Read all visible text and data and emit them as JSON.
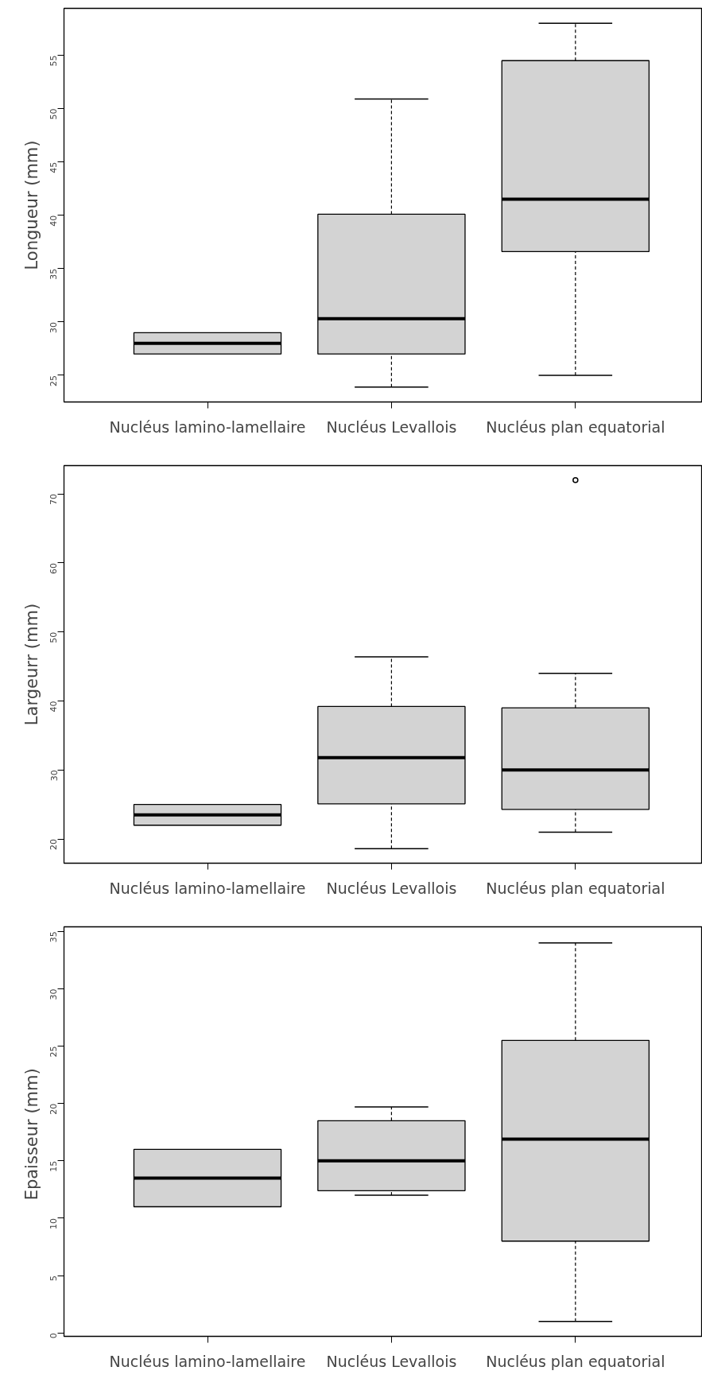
{
  "chart_data": [
    {
      "type": "box",
      "ylabel": "Longueur (mm)",
      "categories": [
        "Nucléus lamino-lamellaire",
        "Nucléus Levallois",
        "Nucléus plan equatorial"
      ],
      "ylim": [
        22.5,
        59.4
      ],
      "yticks": [
        25,
        30,
        35,
        40,
        45,
        50,
        55
      ],
      "series": [
        {
          "color": "#d3d3d3",
          "boxes": [
            {
              "low": 27,
              "q1": 27,
              "median": 28,
              "q3": 29,
              "high": 29
            },
            {
              "low": 23.9,
              "q1": 27,
              "median": 30.3,
              "q3": 40.1,
              "high": 50.9
            },
            {
              "low": 25,
              "q1": 36.6,
              "median": 41.5,
              "q3": 54.5,
              "high": 58
            }
          ]
        }
      ]
    },
    {
      "type": "box",
      "ylabel": "Largeurr (mm)",
      "categories": [
        "Nucléus lamino-lamellaire",
        "Nucléus Levallois",
        "Nucléus plan equatorial"
      ],
      "ylim": [
        16.5,
        74.1
      ],
      "yticks": [
        20,
        30,
        40,
        50,
        60,
        70
      ],
      "series": [
        {
          "color": "#d3d3d3",
          "boxes": [
            {
              "low": 22,
              "q1": 22,
              "median": 23.5,
              "q3": 25,
              "high": 25
            },
            {
              "low": 18.6,
              "q1": 25.1,
              "median": 31.8,
              "q3": 39.2,
              "high": 46.4
            },
            {
              "low": 21,
              "q1": 24.3,
              "median": 30,
              "q3": 39,
              "high": 44,
              "outliers": [
                72
              ]
            }
          ]
        }
      ]
    },
    {
      "type": "box",
      "ylabel": "Epaisseur  (mm)",
      "categories": [
        "Nucléus lamino-lamellaire",
        "Nucléus Levallois",
        "Nucléus plan equatorial"
      ],
      "ylim": [
        -0.3,
        35.4
      ],
      "yticks": [
        0,
        5,
        10,
        15,
        20,
        25,
        30,
        35
      ],
      "series": [
        {
          "color": "#d3d3d3",
          "boxes": [
            {
              "low": 11,
              "q1": 11,
              "median": 13.5,
              "q3": 16,
              "high": 16
            },
            {
              "low": 12,
              "q1": 12.4,
              "median": 15,
              "q3": 18.5,
              "high": 19.7
            },
            {
              "low": 1,
              "q1": 8,
              "median": 16.9,
              "q3": 25.5,
              "high": 34
            }
          ]
        }
      ]
    }
  ]
}
